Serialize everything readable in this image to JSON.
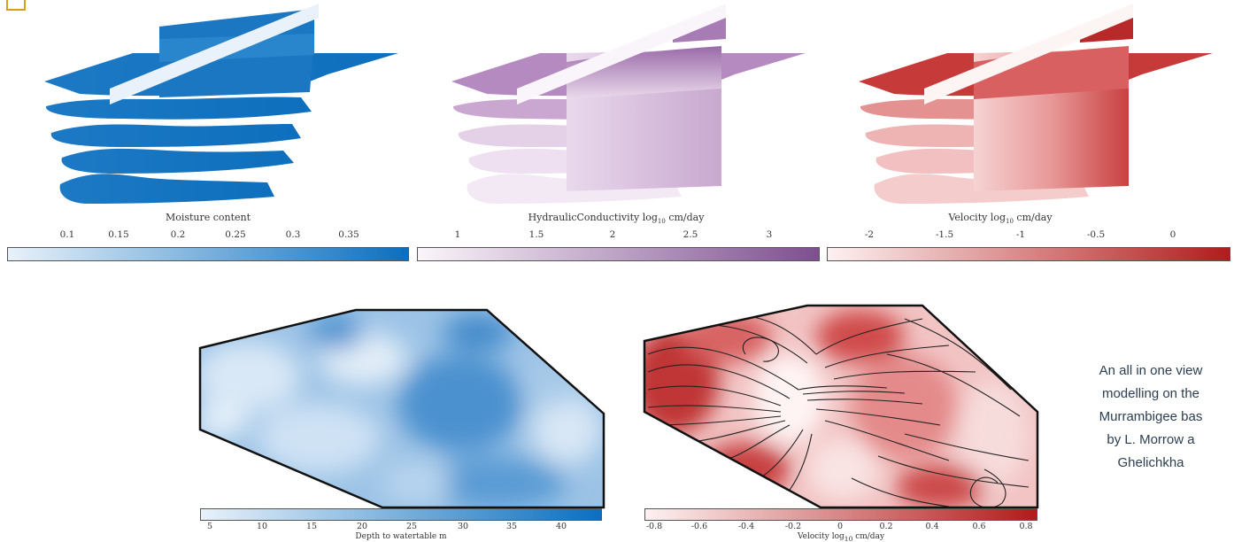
{
  "colorbars": {
    "moisture": {
      "title": "Moisture content",
      "ticks": [
        "0.1",
        "0.15",
        "0.2",
        "0.25",
        "0.3",
        "0.35"
      ],
      "color_low": "#e8f1f9",
      "color_high": "#0b6fbf"
    },
    "conductivity": {
      "title_text": "HydraulicConductivity log",
      "title_sub": "10",
      "title_unit": " cm/day",
      "ticks": [
        "1",
        "1.5",
        "2",
        "2.5",
        "3"
      ],
      "color_low": "#fbf5fa",
      "color_high": "#7d4f8f"
    },
    "velocity_3d": {
      "title_text": "Velocity log",
      "title_sub": "10",
      "title_unit": " cm/day",
      "ticks": [
        "-2",
        "-1.5",
        "-1",
        "-0.5",
        "0"
      ],
      "color_low": "#fdf1f1",
      "color_high": "#b11c1c"
    },
    "depth": {
      "title": "Depth to watertable m",
      "ticks": [
        "5",
        "10",
        "15",
        "20",
        "25",
        "30",
        "35",
        "40"
      ],
      "color_low": "#e8f1f9",
      "color_high": "#0b6fbf"
    },
    "velocity_2d": {
      "title_text": "Velocity log",
      "title_sub": "10",
      "title_unit": " cm/day",
      "ticks": [
        "-0.8",
        "-0.6",
        "-0.4",
        "-0.2",
        "0",
        "0.2",
        "0.4",
        "0.6",
        "0.8"
      ],
      "color_low": "#fdf1f1",
      "color_high": "#b11c1c"
    }
  },
  "caption": {
    "lines": [
      "An all in one view",
      "modelling on the",
      "Murrambigee bas",
      "by L. Morrow a",
      "Ghelichkha"
    ]
  }
}
